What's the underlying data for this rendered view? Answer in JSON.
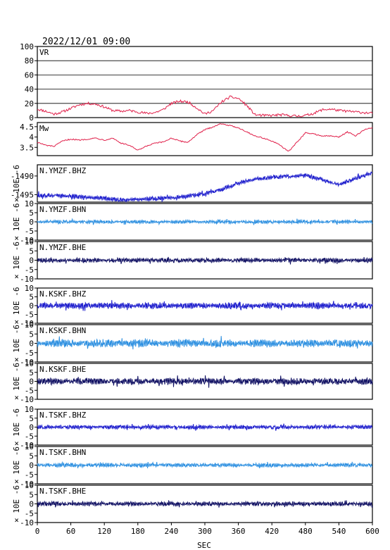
{
  "header": {
    "datetime": "2022/12/01 09:00"
  },
  "chart_data": {
    "type": "line",
    "xlabel": "SEC",
    "xlim": [
      0,
      600
    ],
    "xticks": [
      0,
      60,
      120,
      180,
      240,
      300,
      360,
      420,
      480,
      540,
      600
    ],
    "colors": {
      "frame": "#000000",
      "vr_mw": "#e0204a",
      "bhz": "#1a1acc",
      "bhn": "#2a8ee0",
      "bhe": "#0c0c60"
    },
    "panels": [
      {
        "name": "VR",
        "ylim": [
          0,
          100
        ],
        "yticks": [
          0,
          20,
          40,
          60,
          80,
          100
        ],
        "grid": true,
        "color": "vr_mw",
        "series": {
          "x": [
            0,
            15,
            30,
            45,
            60,
            75,
            90,
            105,
            120,
            135,
            150,
            165,
            180,
            195,
            210,
            225,
            240,
            255,
            270,
            285,
            300,
            315,
            330,
            345,
            360,
            375,
            390,
            405,
            420,
            435,
            450,
            465,
            480,
            495,
            510,
            525,
            540,
            555,
            570,
            585,
            600
          ],
          "y": [
            12,
            9,
            5,
            8,
            13,
            18,
            20,
            19,
            15,
            10,
            9,
            10,
            8,
            6,
            7,
            11,
            20,
            23,
            22,
            14,
            5,
            10,
            22,
            29,
            27,
            17,
            4,
            3,
            3,
            4,
            3,
            2,
            3,
            6,
            11,
            12,
            10,
            9,
            8,
            7,
            6
          ]
        }
      },
      {
        "name": "Mw",
        "ylim": [
          3.1,
          4.7
        ],
        "yticks": [
          3.5,
          4.0,
          4.5
        ],
        "grid": false,
        "color": "vr_mw",
        "series": {
          "x": [
            0,
            15,
            30,
            45,
            60,
            75,
            90,
            105,
            120,
            135,
            150,
            165,
            180,
            195,
            210,
            225,
            240,
            255,
            270,
            285,
            300,
            315,
            330,
            345,
            360,
            375,
            390,
            405,
            420,
            435,
            450,
            465,
            480,
            495,
            510,
            525,
            540,
            555,
            570,
            585,
            600
          ],
          "y": [
            3.75,
            3.6,
            3.55,
            3.8,
            3.9,
            3.85,
            3.9,
            3.95,
            3.85,
            3.95,
            3.7,
            3.6,
            3.35,
            3.55,
            3.7,
            3.75,
            3.95,
            3.8,
            3.75,
            4.1,
            4.35,
            4.5,
            4.65,
            4.55,
            4.45,
            4.25,
            4.05,
            3.95,
            3.8,
            3.6,
            3.3,
            3.75,
            4.2,
            4.15,
            4.05,
            4.05,
            4.0,
            4.25,
            4.05,
            4.35,
            4.45
          ]
        }
      },
      {
        "name": "N.YMZF.BHZ",
        "ylabel": "× 10E -6",
        "ylim": [
          -1497,
          -1487
        ],
        "yticks": [
          -1495,
          -1490
        ],
        "tick_labels": [
          "-1495",
          "-1490"
        ],
        "color": "bhz",
        "series": {
          "x": [
            0,
            60,
            120,
            150,
            180,
            240,
            270,
            300,
            330,
            360,
            390,
            420,
            450,
            480,
            510,
            540,
            570,
            600
          ],
          "y": [
            -1495.2,
            -1495.4,
            -1496.0,
            -1496.4,
            -1496.3,
            -1495.8,
            -1495.4,
            -1494.6,
            -1493.6,
            -1491.9,
            -1490.8,
            -1490.3,
            -1490.1,
            -1489.9,
            -1491.0,
            -1492.3,
            -1490.7,
            -1489.0
          ]
        },
        "noise_amplitude": 0.55
      },
      {
        "name": "N.YMZF.BHN",
        "ylabel": "× 10E -6",
        "ylim": [
          -10,
          10
        ],
        "yticks": [
          -10,
          -5,
          0,
          5,
          10
        ],
        "tick_labels": [
          "-10",
          "-5",
          "0",
          "5",
          "10"
        ],
        "color": "bhn",
        "noise_amplitude": 0.9
      },
      {
        "name": "N.YMZF.BHE",
        "ylabel": "× 10E -6",
        "ylim": [
          -10,
          10
        ],
        "yticks": [
          -10,
          -5,
          0,
          5,
          10
        ],
        "tick_labels": [
          "-10",
          "-5",
          "0",
          "5",
          "10"
        ],
        "color": "bhe",
        "noise_amplitude": 1.1
      },
      {
        "name": "N.KSKF.BHZ",
        "ylabel": "× 10E -6",
        "ylim": [
          -10,
          10
        ],
        "yticks": [
          -10,
          -5,
          0,
          5,
          10
        ],
        "tick_labels": [
          "-10",
          "-5",
          "0",
          "5",
          "10"
        ],
        "color": "bhz",
        "noise_amplitude": 1.6
      },
      {
        "name": "N.KSKF.BHN",
        "ylabel": "× 10E -6",
        "ylim": [
          -10,
          10
        ],
        "yticks": [
          -10,
          -5,
          0,
          5,
          10
        ],
        "tick_labels": [
          "-10",
          "-5",
          "0",
          "5",
          "10"
        ],
        "color": "bhn",
        "noise_amplitude": 1.9
      },
      {
        "name": "N.KSKF.BHE",
        "ylabel": "× 10E -6",
        "ylim": [
          -10,
          10
        ],
        "yticks": [
          -10,
          -5,
          0,
          5,
          10
        ],
        "tick_labels": [
          "-10",
          "-5",
          "0",
          "5",
          "10"
        ],
        "color": "bhe",
        "noise_amplitude": 1.7
      },
      {
        "name": "N.TSKF.BHZ",
        "ylabel": "× 10E -6",
        "ylim": [
          -10,
          10
        ],
        "yticks": [
          -10,
          -5,
          0,
          5,
          10
        ],
        "tick_labels": [
          "-10",
          "-5",
          "0",
          "5",
          "10"
        ],
        "color": "bhz",
        "noise_amplitude": 1.0
      },
      {
        "name": "N.TSKF.BHN",
        "ylabel": "× 10E -6",
        "ylim": [
          -10,
          10
        ],
        "yticks": [
          -10,
          -5,
          0,
          5,
          10
        ],
        "tick_labels": [
          "-10",
          "-5",
          "0",
          "5",
          "10"
        ],
        "color": "bhn",
        "noise_amplitude": 1.0
      },
      {
        "name": "N.TSKF.BHE",
        "ylabel": "× 10E -6",
        "ylim": [
          -10,
          10
        ],
        "yticks": [
          -10,
          -5,
          0,
          5,
          10
        ],
        "tick_labels": [
          "-10",
          "-5",
          "0",
          "5",
          "10"
        ],
        "color": "bhe",
        "noise_amplitude": 1.1
      }
    ]
  }
}
